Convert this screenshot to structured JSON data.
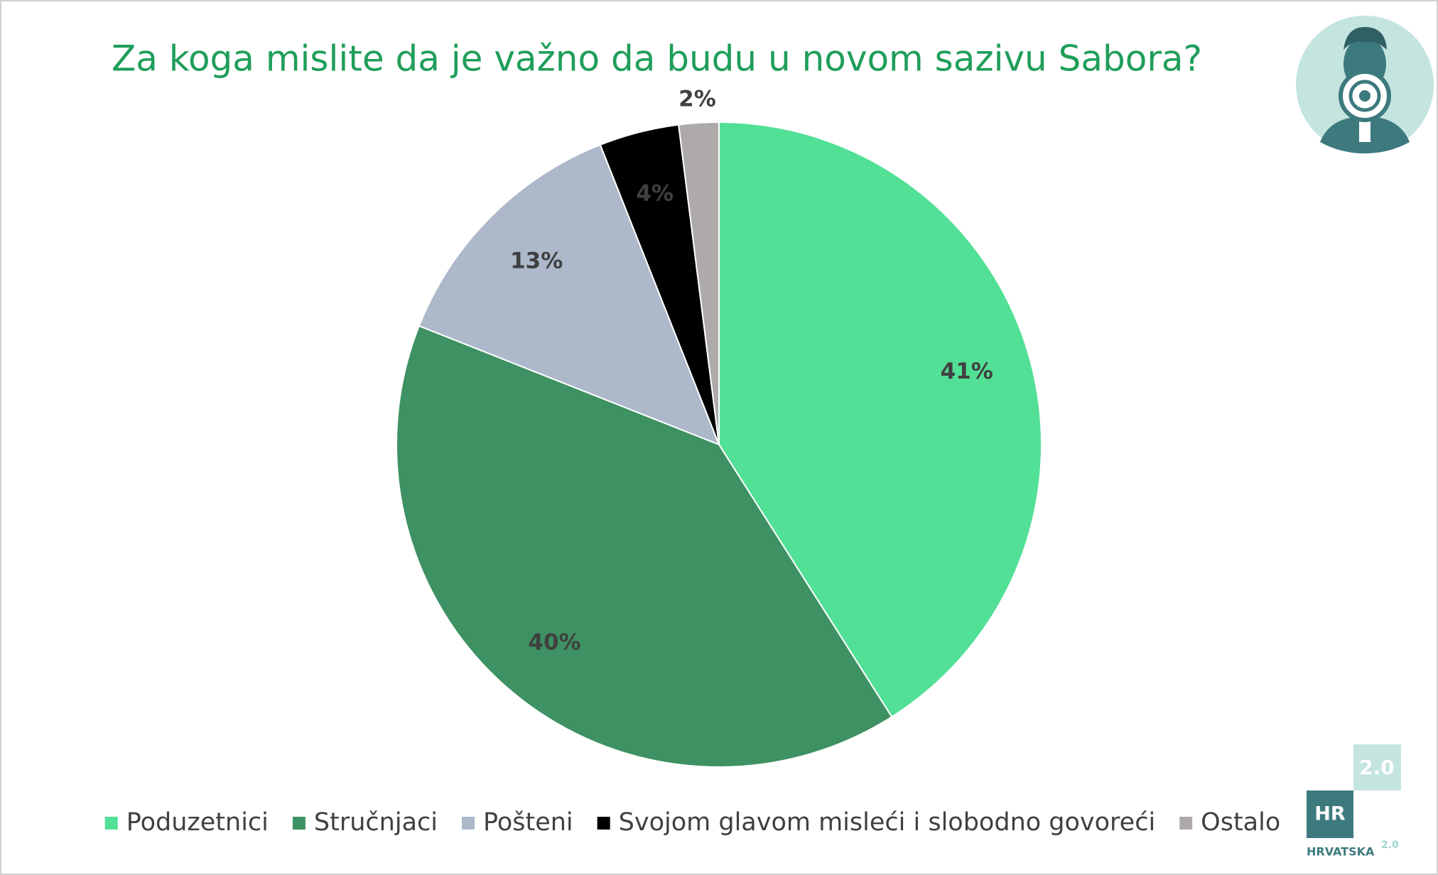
{
  "chart_data": {
    "type": "pie",
    "title": "Za koga mislite da je važno da budu u novom sazivu Sabora?",
    "categories": [
      "Poduzetnici",
      "Stručnjaci",
      "Pošteni",
      "Svojom glavom misleći i slobodno govoreći",
      "Ostalo"
    ],
    "values": [
      41,
      40,
      13,
      4,
      2
    ],
    "value_labels": [
      "41%",
      "40%",
      "13%",
      "4%",
      "2%"
    ],
    "colors": [
      "#52e096",
      "#3e9162",
      "#adb8cb",
      "#000000",
      "#aeaaaa"
    ],
    "legend": "bottom"
  },
  "logo": {
    "hr": "HR",
    "version": "2.0",
    "name": "HRVATSKA"
  }
}
